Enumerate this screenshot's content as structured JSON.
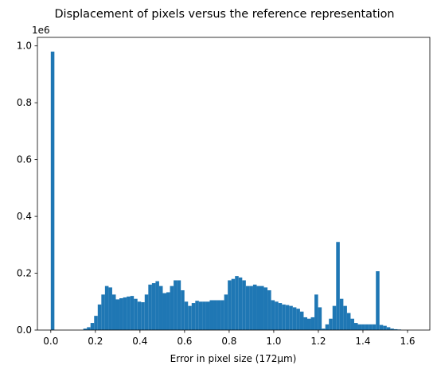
{
  "chart_data": {
    "type": "histogram",
    "title": "Displacement of pixels versus the reference representation",
    "x_label": "Error in pixel size (172μm)",
    "y_offset_label": "1e6",
    "color": "#1f77b4",
    "bins": [
      0,
      0.0162,
      0.0324,
      0.0486,
      0.0648,
      0.081,
      0.0972,
      0.1134,
      0.1296,
      0.1458,
      0.162,
      0.1782,
      0.1944,
      0.2106,
      0.2268,
      0.243,
      0.2592,
      0.2754,
      0.2916,
      0.3078,
      0.324,
      0.3402,
      0.3564,
      0.3726,
      0.3888,
      0.405,
      0.4212,
      0.4374,
      0.4536,
      0.4698,
      0.486,
      0.5022,
      0.5184,
      0.5346,
      0.5508,
      0.567,
      0.5832,
      0.5994,
      0.6156,
      0.6318,
      0.648,
      0.6642,
      0.6804,
      0.6966,
      0.7128,
      0.729,
      0.7452,
      0.7614,
      0.7776,
      0.7938,
      0.81,
      0.8262,
      0.8424,
      0.8586,
      0.8748,
      0.891,
      0.9072,
      0.9234,
      0.9396,
      0.9558,
      0.972,
      0.9882,
      1.0044,
      1.0206,
      1.0368,
      1.053,
      1.0692,
      1.0854,
      1.1016,
      1.1178,
      1.134,
      1.1502,
      1.1664,
      1.1826,
      1.1988,
      1.215,
      1.2312,
      1.2474,
      1.2636,
      1.2798,
      1.296,
      1.3122,
      1.3284,
      1.3446,
      1.3608,
      1.377,
      1.3932,
      1.4094,
      1.4256,
      1.4418,
      1.458,
      1.4742,
      1.4904,
      1.5066,
      1.5228,
      1.539,
      1.5552,
      1.5714,
      1.5876,
      1.6038,
      1.62
    ],
    "values": [
      980000,
      0,
      0,
      0,
      0,
      0,
      0,
      0,
      0,
      5000,
      10000,
      25000,
      50000,
      90000,
      125000,
      155000,
      150000,
      125000,
      108000,
      112000,
      115000,
      118000,
      120000,
      110000,
      100000,
      98000,
      125000,
      160000,
      165000,
      172000,
      155000,
      130000,
      133000,
      155000,
      175000,
      175000,
      140000,
      100000,
      85000,
      95000,
      103000,
      100000,
      100000,
      100000,
      105000,
      105000,
      105000,
      105000,
      125000,
      175000,
      180000,
      190000,
      185000,
      175000,
      155000,
      155000,
      160000,
      155000,
      155000,
      150000,
      140000,
      105000,
      100000,
      95000,
      90000,
      88000,
      85000,
      80000,
      75000,
      65000,
      45000,
      40000,
      45000,
      125000,
      80000,
      5000,
      20000,
      40000,
      85000,
      310000,
      110000,
      85000,
      60000,
      40000,
      25000,
      20000,
      20000,
      20000,
      20000,
      20000,
      207000,
      18000,
      15000,
      10000,
      5000,
      3000,
      2000,
      0,
      0,
      0
    ],
    "xlim": [
      -0.06,
      1.7
    ],
    "ylim": [
      0,
      1030000
    ],
    "xticks": [
      {
        "value": 0,
        "label": "0.0"
      },
      0.2,
      0.4,
      0.6,
      0.8,
      {
        "value": 1,
        "label": "1.0"
      },
      1.2,
      1.4,
      1.6
    ],
    "yticks": [
      {
        "value": 0,
        "label": "0.0"
      },
      {
        "value": 200000,
        "label": "0.2"
      },
      {
        "value": 400000,
        "label": "0.4"
      },
      {
        "value": 600000,
        "label": "0.6"
      },
      {
        "value": 800000,
        "label": "0.8"
      },
      {
        "value": 1000000,
        "label": "1.0"
      }
    ],
    "grid": false
  }
}
